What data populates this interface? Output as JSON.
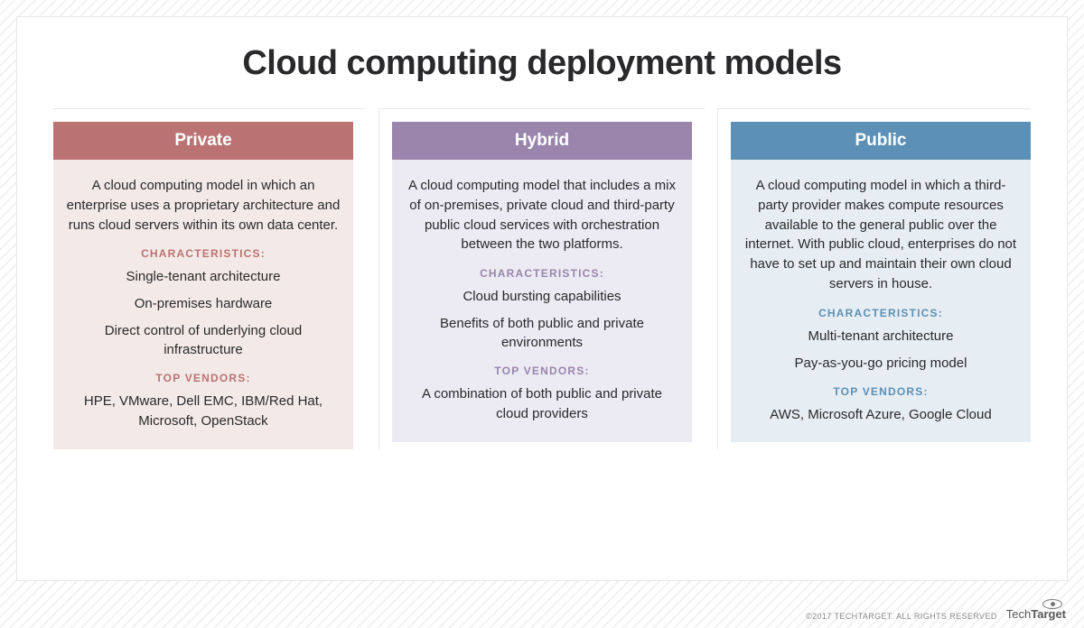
{
  "title": "Cloud computing deployment models",
  "labels": {
    "characteristics": "CHARACTERISTICS:",
    "top_vendors": "TOP VENDORS:"
  },
  "columns": [
    {
      "name": "Private",
      "header_bg": "#ba7272",
      "body_bg": "#f3eae8",
      "accent": "#ba7272",
      "description": "A cloud computing model in which an enterprise uses a proprietary architecture and runs cloud servers within its own data center.",
      "characteristics": [
        "Single-tenant architecture",
        "On-premises hardware",
        "Direct control of underlying cloud infrastructure"
      ],
      "vendors": "HPE, VMware, Dell EMC, IBM/Red Hat, Microsoft, OpenStack"
    },
    {
      "name": "Hybrid",
      "header_bg": "#9a85ad",
      "body_bg": "#ecebf3",
      "accent": "#9a85ad",
      "description": "A cloud computing model that includes a mix of on-premises, private cloud and third-party public cloud services with orchestration between the two platforms.",
      "characteristics": [
        "Cloud bursting capabilities",
        "Benefits of both public and private environments"
      ],
      "vendors": "A combination of both public and private cloud providers"
    },
    {
      "name": "Public",
      "header_bg": "#5c90b6",
      "body_bg": "#e7eef3",
      "accent": "#5c90b6",
      "description": "A cloud computing model in which a third-party provider makes compute resources available to the general public over the internet. With public cloud, enterprises do not have to set up and maintain their own cloud servers in house.",
      "characteristics": [
        "Multi-tenant architecture",
        "Pay-as-you-go pricing model"
      ],
      "vendors": "AWS, Microsoft Azure, Google Cloud"
    }
  ],
  "footer": {
    "copyright": "©2017 TECHTARGET. ALL RIGHTS RESERVED",
    "logo_prefix": "Tech",
    "logo_suffix": "Target"
  },
  "style": {
    "page_bg": "#ffffff",
    "stripe_color": "#f2f2f2",
    "title_color": "#29292b",
    "title_fontsize": 38,
    "body_text_color": "#29292b",
    "body_fontsize": 15,
    "section_label_fontsize": 12,
    "header_text_color": "#ffffff",
    "divider_color": "#e8e8e8"
  }
}
